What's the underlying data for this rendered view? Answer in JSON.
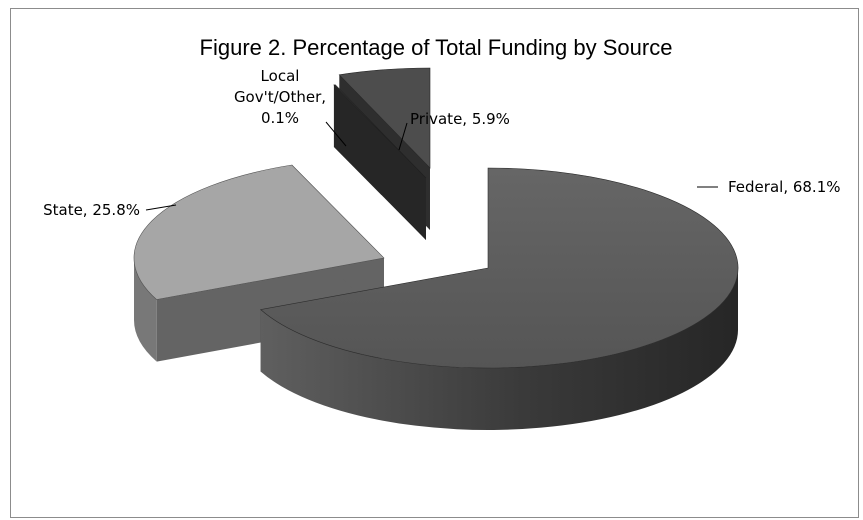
{
  "chart_data": {
    "type": "pie",
    "title": "Figure 2. Percentage of Total Funding by Source",
    "style": "3d-exploded",
    "legend": "none",
    "slices": [
      {
        "name": "Federal",
        "value": 68.1,
        "label": "Federal, 68.1%",
        "color": "#595959"
      },
      {
        "name": "State",
        "value": 25.8,
        "label": "State, 25.8%",
        "color": "#a6a6a6"
      },
      {
        "name": "Local Gov't/Other",
        "value": 0.1,
        "label_lines": [
          "Local",
          "Gov't/Other,",
          "0.1%"
        ],
        "color": "#3f3f3f"
      },
      {
        "name": "Private",
        "value": 5.9,
        "label": "Private, 5.9%",
        "color": "#4d4d4d"
      }
    ]
  }
}
